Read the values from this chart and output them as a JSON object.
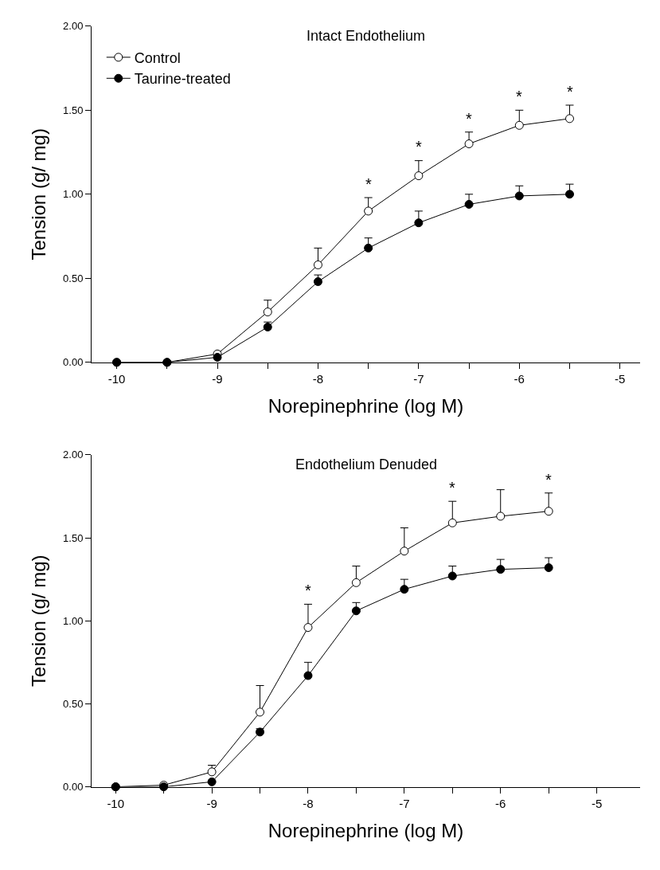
{
  "chart_data": [
    {
      "type": "line",
      "title": "Intact Endothelium",
      "xlabel": "Norepinephrine (log M)",
      "ylabel": "Tension (g/ mg)",
      "x": [
        -10,
        -9.5,
        -9,
        -8.5,
        -8,
        -7.5,
        -7,
        -6.5,
        -6,
        -5.5
      ],
      "series": [
        {
          "name": "Control",
          "color": "#ffffff",
          "values": [
            0,
            0,
            0.05,
            0.3,
            0.58,
            0.9,
            1.11,
            1.3,
            1.41,
            1.45
          ],
          "errors": [
            null,
            null,
            null,
            [
              0.3,
              0.37
            ],
            [
              0.58,
              0.68
            ],
            [
              0.9,
              0.98
            ],
            [
              1.11,
              1.2
            ],
            [
              1.3,
              1.37
            ],
            [
              1.41,
              1.5
            ],
            [
              1.45,
              1.53
            ]
          ]
        },
        {
          "name": "Taurine-treated",
          "color": "#000000",
          "values": [
            0,
            0,
            0.03,
            0.21,
            0.48,
            0.68,
            0.83,
            0.94,
            0.99,
            1.0
          ],
          "errors": [
            null,
            null,
            null,
            [
              0.21,
              0.24
            ],
            [
              0.48,
              0.52
            ],
            [
              0.68,
              0.74
            ],
            [
              0.83,
              0.9
            ],
            [
              0.94,
              1.0
            ],
            [
              0.99,
              1.05
            ],
            [
              1.0,
              1.06
            ]
          ]
        }
      ],
      "annotations": [
        {
          "text": "*",
          "x": -7.5,
          "y": 1.0
        },
        {
          "text": "*",
          "x": -7,
          "y": 1.22
        },
        {
          "text": "*",
          "x": -6.5,
          "y": 1.39
        },
        {
          "text": "*",
          "x": -6,
          "y": 1.52
        },
        {
          "text": "*",
          "x": -5.5,
          "y": 1.55
        }
      ],
      "xlim": [
        -10.25,
        -4.8
      ],
      "xticks": [
        {
          "value": -10,
          "label": "-10"
        },
        {
          "value": -9.5,
          "label": null
        },
        {
          "value": -9,
          "label": "-9"
        },
        {
          "value": -8.5,
          "label": null
        },
        {
          "value": -8,
          "label": "-8"
        },
        {
          "value": -7.5,
          "label": null
        },
        {
          "value": -7,
          "label": "-7"
        },
        {
          "value": -6.5,
          "label": null
        },
        {
          "value": -6,
          "label": "-6"
        },
        {
          "value": -5.5,
          "label": null
        },
        {
          "value": -5,
          "label": "-5"
        }
      ],
      "ylim": [
        0,
        2
      ],
      "yticks": [
        {
          "value": 0,
          "label": "0.00"
        },
        {
          "value": 0.5,
          "label": "0.50"
        },
        {
          "value": 1,
          "label": "1.00"
        },
        {
          "value": 1.5,
          "label": "1.50"
        },
        {
          "value": 2,
          "label": "2.00"
        }
      ],
      "marker": "circle",
      "line_style": "solid",
      "legend": "top left"
    },
    {
      "type": "line",
      "title": "Endothelium Denuded",
      "xlabel": "Norepinephrine (log M)",
      "ylabel": "Tension (g/ mg)",
      "x": [
        -10,
        -9.5,
        -9,
        -8.5,
        -8,
        -7.5,
        -7,
        -6.5,
        -6,
        -5.5
      ],
      "series": [
        {
          "color": "#ffffff",
          "values": [
            0,
            0.01,
            0.09,
            0.45,
            0.96,
            1.23,
            1.42,
            1.59,
            1.63,
            1.66
          ],
          "errors": [
            null,
            null,
            [
              0.09,
              0.13
            ],
            [
              0.45,
              0.61
            ],
            [
              0.96,
              1.1
            ],
            [
              1.23,
              1.33
            ],
            [
              1.42,
              1.56
            ],
            [
              1.59,
              1.72
            ],
            [
              1.63,
              1.79
            ],
            [
              1.66,
              1.77
            ]
          ]
        },
        {
          "color": "#000000",
          "values": [
            0,
            0,
            0.03,
            0.33,
            0.67,
            1.06,
            1.19,
            1.27,
            1.31,
            1.32
          ],
          "errors": [
            null,
            null,
            null,
            [
              0.33,
              0.35
            ],
            [
              0.67,
              0.75
            ],
            [
              1.06,
              1.11
            ],
            [
              1.19,
              1.25
            ],
            [
              1.27,
              1.33
            ],
            [
              1.31,
              1.37
            ],
            [
              1.32,
              1.38
            ]
          ]
        }
      ],
      "annotations": [
        {
          "text": "*",
          "x": -8,
          "y": 1.12
        },
        {
          "text": "*",
          "x": -6.5,
          "y": 1.74
        },
        {
          "text": "*",
          "x": -5.5,
          "y": 1.79
        }
      ],
      "xlim": [
        -10.25,
        -4.55
      ],
      "xticks": [
        {
          "value": -10,
          "label": "-10"
        },
        {
          "value": -9.5,
          "label": null
        },
        {
          "value": -9,
          "label": "-9"
        },
        {
          "value": -8.5,
          "label": null
        },
        {
          "value": -8,
          "label": "-8"
        },
        {
          "value": -7.5,
          "label": null
        },
        {
          "value": -7,
          "label": "-7"
        },
        {
          "value": -6.5,
          "label": null
        },
        {
          "value": -6,
          "label": "-6"
        },
        {
          "value": -5.5,
          "label": null
        },
        {
          "value": -5,
          "label": "-5"
        }
      ],
      "ylim": [
        0,
        2
      ],
      "yticks": [
        {
          "value": 0,
          "label": "0.00"
        },
        {
          "value": 0.5,
          "label": "0.50"
        },
        {
          "value": 1,
          "label": "1.00"
        },
        {
          "value": 1.5,
          "label": "1.50"
        },
        {
          "value": 2,
          "label": "2.00"
        }
      ],
      "marker": "circle",
      "line_style": "solid"
    }
  ]
}
